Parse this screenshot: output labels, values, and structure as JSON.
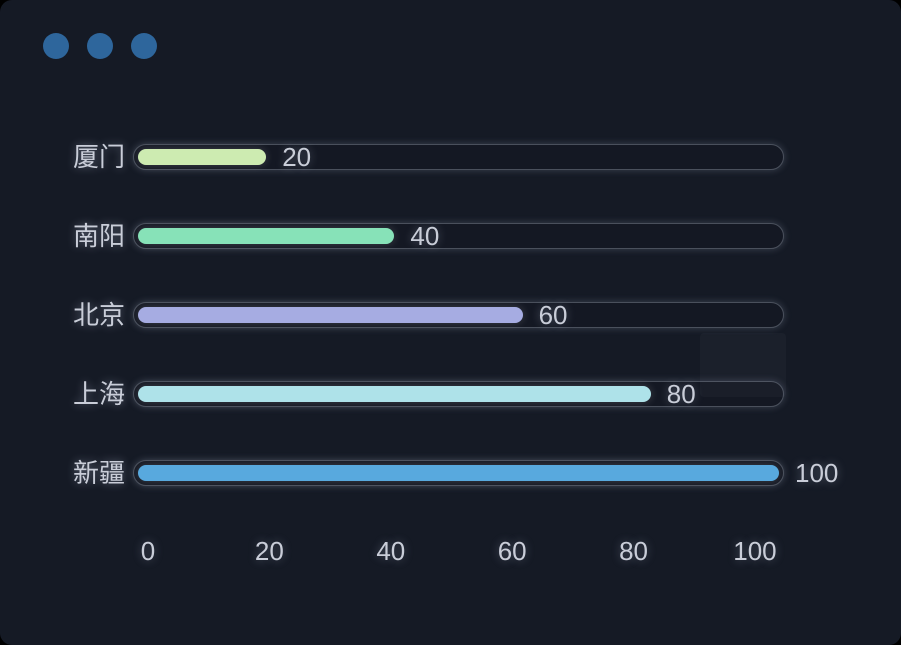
{
  "window": {
    "dots_color": "#2e669c",
    "background_color": "#151a25"
  },
  "colors": {
    "track_border": "#4a505c",
    "track_background": "#141823",
    "label_text": "#c9cdd8"
  },
  "chart_data": {
    "type": "bar",
    "orientation": "horizontal",
    "title": "",
    "xlabel": "",
    "ylabel": "",
    "grid": false,
    "legend": false,
    "categories": [
      "厦门",
      "南阳",
      "北京",
      "上海",
      "新疆"
    ],
    "values": [
      20,
      40,
      60,
      80,
      100
    ],
    "value_labels": [
      "20",
      "40",
      "60",
      "80",
      "100"
    ],
    "bar_colors": [
      "#cdebb1",
      "#87e2b8",
      "#a6ace2",
      "#aee2e9",
      "#58a9de"
    ],
    "x_ticks": [
      "0",
      "20",
      "40",
      "60",
      "80",
      "100"
    ],
    "xlim": [
      0,
      100
    ]
  }
}
